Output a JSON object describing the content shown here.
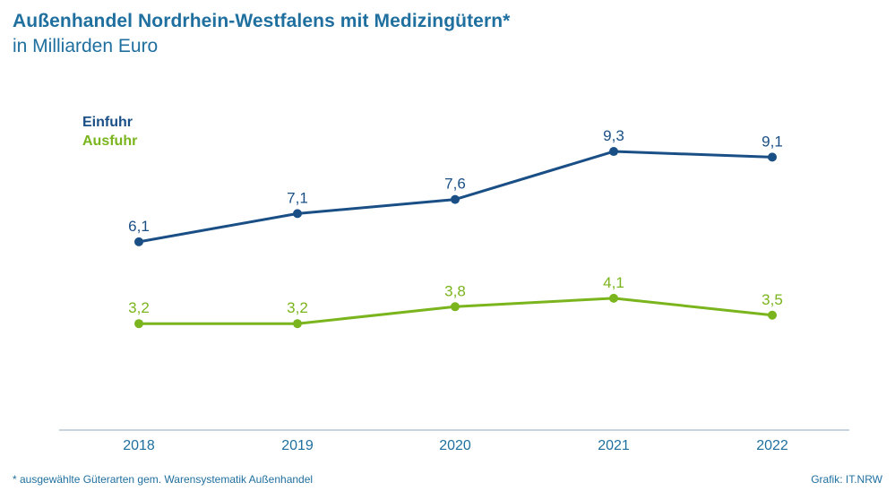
{
  "header": {
    "title": "Außenhandel Nordrhein-Westfalens mit Medizingütern*",
    "subtitle": "in Milliarden Euro"
  },
  "footer": {
    "footnote": "* ausgewählte Güterarten gem. Warensystematik Außenhandel",
    "source": "Grafik: IT.NRW"
  },
  "colors": {
    "einfuhr": "#1a4f86",
    "ausfuhr": "#7ab51d",
    "axis": "#b8c6d3",
    "text": "#1f6f9f"
  },
  "chart_data": {
    "type": "line",
    "title": "Außenhandel Nordrhein-Westfalens mit Medizingütern*",
    "subtitle": "in Milliarden Euro",
    "x": [
      "2018",
      "2019",
      "2020",
      "2021",
      "2022"
    ],
    "series": [
      {
        "name": "Einfuhr",
        "values": [
          6.1,
          7.1,
          7.6,
          9.3,
          9.1
        ],
        "labels": [
          "6,1",
          "7,1",
          "7,6",
          "9,3",
          "9,1"
        ],
        "color": "#1a4f86"
      },
      {
        "name": "Ausfuhr",
        "values": [
          3.2,
          3.2,
          3.8,
          4.1,
          3.5
        ],
        "labels": [
          "3,2",
          "3,2",
          "3,8",
          "4,1",
          "3,5"
        ],
        "color": "#7ab51d"
      }
    ],
    "ylim": [
      0,
      10
    ],
    "grid": false,
    "legend": "top-left"
  }
}
